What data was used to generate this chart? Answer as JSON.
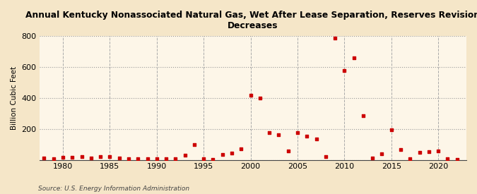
{
  "title": "Annual Kentucky Nonassociated Natural Gas, Wet After Lease Separation, Reserves Revision\nDecreases",
  "ylabel": "Billion Cubic Feet",
  "source": "Source: U.S. Energy Information Administration",
  "background_color": "#f5e6c8",
  "plot_background_color": "#fdf6e8",
  "marker_color": "#cc0000",
  "marker": "s",
  "markersize": 3.5,
  "ylim": [
    0,
    800
  ],
  "yticks": [
    0,
    200,
    400,
    600,
    800
  ],
  "xlim": [
    1977.5,
    2023
  ],
  "xticks": [
    1980,
    1985,
    1990,
    1995,
    2000,
    2005,
    2010,
    2015,
    2020
  ],
  "years": [
    1978,
    1979,
    1980,
    1981,
    1982,
    1983,
    1984,
    1985,
    1986,
    1987,
    1988,
    1989,
    1990,
    1991,
    1992,
    1993,
    1994,
    1995,
    1996,
    1997,
    1998,
    1999,
    2000,
    2001,
    2002,
    2003,
    2004,
    2005,
    2006,
    2007,
    2008,
    2009,
    2010,
    2011,
    2012,
    2013,
    2014,
    2015,
    2016,
    2017,
    2018,
    2019,
    2020,
    2021,
    2022
  ],
  "values": [
    10,
    5,
    15,
    18,
    20,
    14,
    20,
    23,
    14,
    8,
    8,
    8,
    8,
    8,
    8,
    28,
    100,
    8,
    3,
    35,
    42,
    70,
    420,
    400,
    175,
    163,
    58,
    175,
    152,
    133,
    20,
    790,
    578,
    660,
    285,
    12,
    40,
    193,
    68,
    8,
    50,
    55,
    58,
    5,
    2
  ]
}
